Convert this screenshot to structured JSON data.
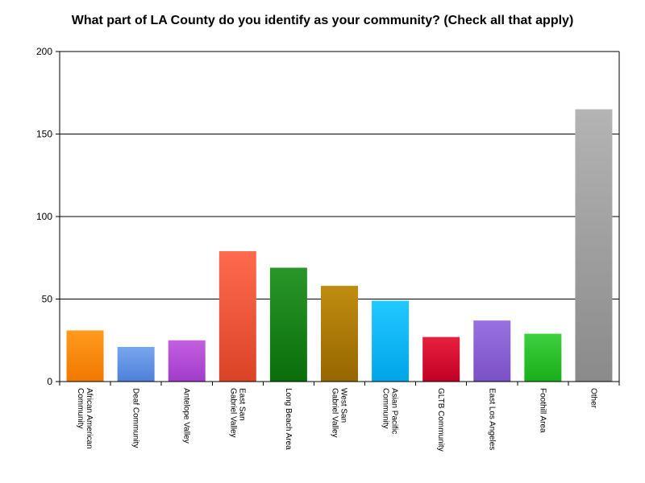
{
  "chart_data": {
    "type": "bar",
    "title": "What part of LA County do you identify as your community? (Check all that apply)",
    "xlabel": "",
    "ylabel": "",
    "ylim": [
      0,
      200
    ],
    "yticks": [
      0,
      50,
      100,
      150,
      200
    ],
    "grid": true,
    "legend": "none",
    "categories": [
      [
        "African American",
        "Community"
      ],
      [
        "Deaf Community"
      ],
      [
        "Antelope Valley"
      ],
      [
        "East San",
        "Gabriel Valley"
      ],
      [
        "Long Beach Area"
      ],
      [
        "West San",
        "Gabriel Valley"
      ],
      [
        "Asian Pacific",
        "Community"
      ],
      [
        "GLTB Community"
      ],
      [
        "East Los Angeles"
      ],
      [
        "Foothill Area"
      ],
      [
        "Other"
      ]
    ],
    "values": [
      31,
      21,
      25,
      79,
      69,
      58,
      49,
      27,
      37,
      29,
      165
    ],
    "colors": [
      [
        "#ff9b1e",
        "#f07800"
      ],
      [
        "#78a6ee",
        "#4f80d9"
      ],
      [
        "#c45fe0",
        "#a03ccb"
      ],
      [
        "#ff6a4e",
        "#db4327"
      ],
      [
        "#2a962a",
        "#0a6e0a"
      ],
      [
        "#c08d10",
        "#966600"
      ],
      [
        "#22c8ff",
        "#00a4e8"
      ],
      [
        "#e8203e",
        "#c10026"
      ],
      [
        "#9a72df",
        "#7a50c6"
      ],
      [
        "#3ed03e",
        "#1aae1a"
      ],
      [
        "#b4b4b4",
        "#8a8a8a"
      ]
    ]
  }
}
